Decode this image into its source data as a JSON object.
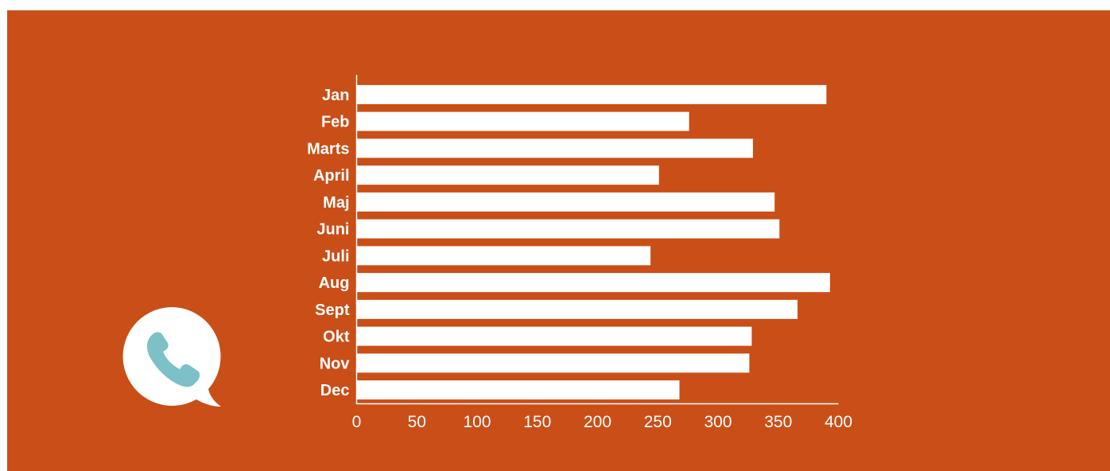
{
  "colors": {
    "background": "#ca4e17",
    "bar": "#ffffff",
    "text": "#ffffff",
    "icon_bubble": "#ffffff",
    "icon_phone": "#7dc0c8"
  },
  "icon": "phone-speech-bubble-icon",
  "chart_data": {
    "type": "bar",
    "orientation": "horizontal",
    "title": "",
    "xlabel": "",
    "ylabel": "",
    "categories": [
      "Jan",
      "Feb",
      "Marts",
      "April",
      "Maj",
      "Juni",
      "Juli",
      "Aug",
      "Sept",
      "Okt",
      "Nov",
      "Dec"
    ],
    "values": [
      390,
      276,
      329,
      251,
      347,
      351,
      244,
      393,
      366,
      328,
      326,
      268
    ],
    "xlim": [
      0,
      400
    ],
    "xticks": [
      "0",
      "50",
      "100",
      "150",
      "200",
      "250",
      "300",
      "350",
      "400"
    ],
    "grid": false,
    "legend": "none"
  }
}
